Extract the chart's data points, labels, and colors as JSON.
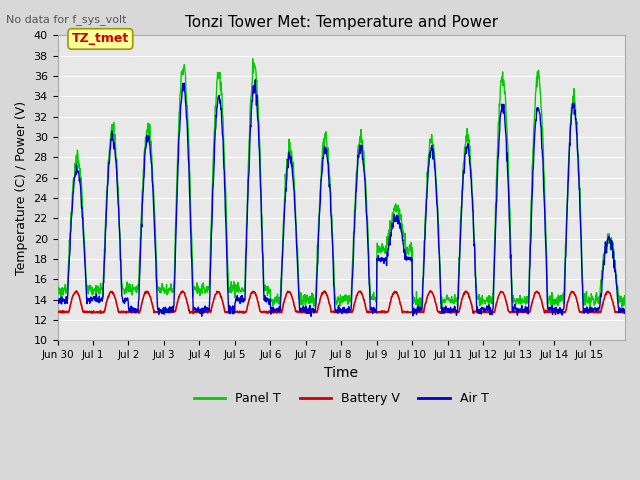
{
  "title": "Tonzi Tower Met: Temperature and Power",
  "subtitle": "No data for f_sys_volt",
  "xlabel": "Time",
  "ylabel": "Temperature (C) / Power (V)",
  "ylim": [
    10,
    40
  ],
  "bg_color": "#d8d8d8",
  "plot_bg_color": "#e8e8e8",
  "grid_color": "#ffffff",
  "panel_t_color": "#00cc00",
  "battery_v_color": "#cc0000",
  "air_t_color": "#0000cc",
  "legend_labels": [
    "Panel T",
    "Battery V",
    "Air T"
  ],
  "annotation_label": "TZ_tmet",
  "annotation_color": "#cc0000",
  "annotation_bg": "#ffff99",
  "day_peak_panel": [
    28,
    31,
    31,
    37,
    36,
    37,
    29,
    30,
    30,
    23,
    30,
    30,
    36,
    36,
    34,
    20
  ],
  "day_min_panel": [
    15,
    15,
    15,
    15,
    15,
    15,
    14,
    14,
    14,
    19,
    14,
    14,
    14,
    14,
    14,
    14
  ],
  "day_peak_air": [
    27,
    30,
    30,
    35,
    34,
    35,
    28,
    29,
    29,
    22,
    29,
    29,
    33,
    33,
    33,
    20
  ],
  "day_min_air": [
    14,
    14,
    13,
    13,
    13,
    14,
    13,
    13,
    13,
    18,
    13,
    13,
    13,
    13,
    13,
    13
  ],
  "xtick_labels": [
    "Jun 30",
    "Jul 1",
    "Jul 2",
    "Jul 3",
    "Jul 4",
    "Jul 5",
    "Jul 6",
    "Jul 7",
    "Jul 8",
    "Jul 9",
    "Jul 10",
    "Jul 11",
    "Jul 12",
    "Jul 13",
    "Jul 14",
    "Jul 15"
  ]
}
